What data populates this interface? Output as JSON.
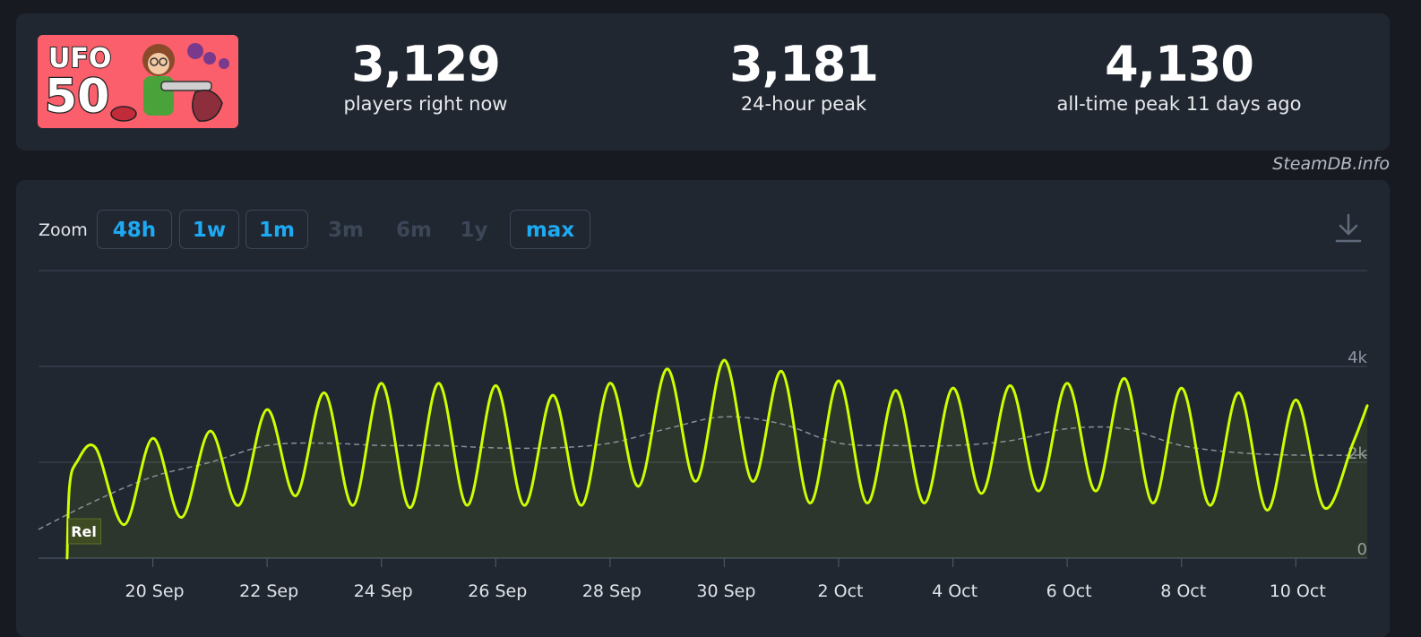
{
  "stats": {
    "current": {
      "value": "3,129",
      "label": "players right now"
    },
    "peak24": {
      "value": "3,181",
      "label": "24-hour peak"
    },
    "alltime": {
      "value": "4,130",
      "label": "all-time peak 11 days ago"
    }
  },
  "logo": {
    "text_line1": "UFO",
    "text_line2": "50"
  },
  "credit": "SteamDB.info",
  "zoom": {
    "label": "Zoom",
    "buttons": [
      {
        "label": "48h",
        "enabled": true
      },
      {
        "label": "1w",
        "enabled": true
      },
      {
        "label": "1m",
        "enabled": true
      },
      {
        "label": "3m",
        "enabled": false
      },
      {
        "label": "6m",
        "enabled": false
      },
      {
        "label": "1y",
        "enabled": false
      },
      {
        "label": "max",
        "enabled": true
      }
    ]
  },
  "download_icon": "download-icon",
  "colors": {
    "line": "#ccff00",
    "avg": "#8a8f96",
    "accent": "#1ea9f3",
    "card": "#212731",
    "page": "#171a21"
  },
  "chart_data": {
    "type": "line",
    "title": "",
    "xlabel": "",
    "ylabel": "",
    "x_ticks": [
      "20 Sep",
      "22 Sep",
      "24 Sep",
      "26 Sep",
      "28 Sep",
      "30 Sep",
      "2 Oct",
      "4 Oct",
      "6 Oct",
      "8 Oct",
      "10 Oct"
    ],
    "y_ticks": [
      "0",
      "2k",
      "4k"
    ],
    "ylim": [
      0,
      6000
    ],
    "xlim": [
      "2024-09-18 00:00",
      "2024-10-11 06:00"
    ],
    "annotation": {
      "label": "Rel",
      "x": "2024-09-18 13:00"
    },
    "series": [
      {
        "style": "solid",
        "points": [
          [
            "2024-09-18 12:00",
            0
          ],
          [
            "2024-09-18 13:00",
            1500
          ],
          [
            "2024-09-18 16:00",
            2000
          ],
          [
            "2024-09-19 00:00",
            2300
          ],
          [
            "2024-09-19 12:00",
            700
          ],
          [
            "2024-09-20 00:00",
            2500
          ],
          [
            "2024-09-20 12:00",
            850
          ],
          [
            "2024-09-21 00:00",
            2650
          ],
          [
            "2024-09-21 12:00",
            1100
          ],
          [
            "2024-09-22 00:00",
            3100
          ],
          [
            "2024-09-22 12:00",
            1300
          ],
          [
            "2024-09-23 00:00",
            3450
          ],
          [
            "2024-09-23 12:00",
            1100
          ],
          [
            "2024-09-24 00:00",
            3650
          ],
          [
            "2024-09-24 12:00",
            1050
          ],
          [
            "2024-09-25 00:00",
            3650
          ],
          [
            "2024-09-25 12:00",
            1100
          ],
          [
            "2024-09-26 00:00",
            3600
          ],
          [
            "2024-09-26 12:00",
            1100
          ],
          [
            "2024-09-27 00:00",
            3400
          ],
          [
            "2024-09-27 12:00",
            1100
          ],
          [
            "2024-09-28 00:00",
            3650
          ],
          [
            "2024-09-28 12:00",
            1500
          ],
          [
            "2024-09-29 00:00",
            3950
          ],
          [
            "2024-09-29 12:00",
            1600
          ],
          [
            "2024-09-30 00:00",
            4130
          ],
          [
            "2024-09-30 12:00",
            1600
          ],
          [
            "2024-10-01 00:00",
            3900
          ],
          [
            "2024-10-01 12:00",
            1150
          ],
          [
            "2024-10-02 00:00",
            3700
          ],
          [
            "2024-10-02 12:00",
            1150
          ],
          [
            "2024-10-03 00:00",
            3500
          ],
          [
            "2024-10-03 12:00",
            1150
          ],
          [
            "2024-10-04 00:00",
            3550
          ],
          [
            "2024-10-04 12:00",
            1350
          ],
          [
            "2024-10-05 00:00",
            3600
          ],
          [
            "2024-10-05 12:00",
            1400
          ],
          [
            "2024-10-06 00:00",
            3650
          ],
          [
            "2024-10-06 12:00",
            1400
          ],
          [
            "2024-10-07 00:00",
            3750
          ],
          [
            "2024-10-07 12:00",
            1150
          ],
          [
            "2024-10-08 00:00",
            3550
          ],
          [
            "2024-10-08 12:00",
            1100
          ],
          [
            "2024-10-09 00:00",
            3450
          ],
          [
            "2024-10-09 12:00",
            1000
          ],
          [
            "2024-10-10 00:00",
            3300
          ],
          [
            "2024-10-10 12:00",
            1050
          ],
          [
            "2024-10-11 00:00",
            2400
          ],
          [
            "2024-10-11 06:00",
            3181
          ]
        ]
      },
      {
        "style": "dashed",
        "points": [
          [
            "2024-09-18 00:00",
            600
          ],
          [
            "2024-09-19 00:00",
            1200
          ],
          [
            "2024-09-20 00:00",
            1700
          ],
          [
            "2024-09-21 00:00",
            2000
          ],
          [
            "2024-09-22 00:00",
            2350
          ],
          [
            "2024-09-23 00:00",
            2400
          ],
          [
            "2024-09-24 00:00",
            2350
          ],
          [
            "2024-09-25 00:00",
            2350
          ],
          [
            "2024-09-26 00:00",
            2300
          ],
          [
            "2024-09-27 00:00",
            2300
          ],
          [
            "2024-09-28 00:00",
            2400
          ],
          [
            "2024-09-29 00:00",
            2700
          ],
          [
            "2024-09-30 00:00",
            2950
          ],
          [
            "2024-10-01 00:00",
            2800
          ],
          [
            "2024-10-02 00:00",
            2400
          ],
          [
            "2024-10-03 00:00",
            2350
          ],
          [
            "2024-10-04 00:00",
            2350
          ],
          [
            "2024-10-05 00:00",
            2450
          ],
          [
            "2024-10-06 00:00",
            2700
          ],
          [
            "2024-10-07 00:00",
            2700
          ],
          [
            "2024-10-08 00:00",
            2350
          ],
          [
            "2024-10-09 00:00",
            2200
          ],
          [
            "2024-10-10 00:00",
            2150
          ],
          [
            "2024-10-11 06:00",
            2150
          ]
        ]
      }
    ]
  }
}
